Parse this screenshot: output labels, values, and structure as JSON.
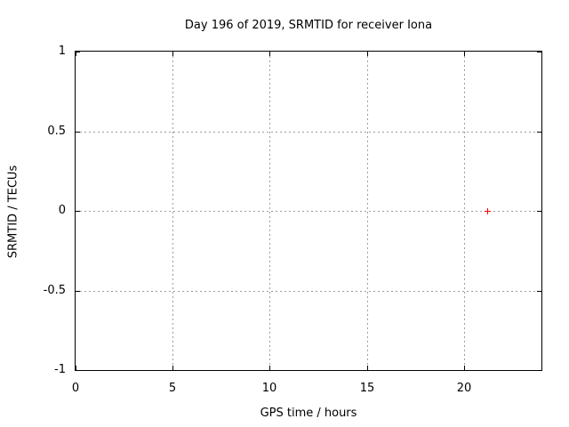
{
  "chart_data": {
    "type": "scatter",
    "title": "Day 196 of 2019, SRMTID for receiver Iona",
    "xlabel": "GPS time / hours",
    "ylabel": "SRMTID / TECUs",
    "xlim": [
      0,
      24
    ],
    "ylim": [
      -1,
      1
    ],
    "grid": true,
    "legend": "none",
    "grid_color": "#9c9c9c",
    "axis_color": "#000000",
    "background": "#ffffff",
    "xticks": [
      {
        "v": 0,
        "label": "0"
      },
      {
        "v": 5,
        "label": "5"
      },
      {
        "v": 10,
        "label": "10"
      },
      {
        "v": 15,
        "label": "15"
      },
      {
        "v": 20,
        "label": "20"
      }
    ],
    "yticks": [
      {
        "v": -1,
        "label": "-1"
      },
      {
        "v": -0.5,
        "label": "-0.5"
      },
      {
        "v": 0,
        "label": "0"
      },
      {
        "v": 0.5,
        "label": "0.5"
      },
      {
        "v": 1,
        "label": "1"
      }
    ],
    "series": [
      {
        "marker": "plus",
        "color": "#ff0000",
        "points": [
          {
            "x": 21.2,
            "y": 0.0
          }
        ]
      }
    ]
  }
}
